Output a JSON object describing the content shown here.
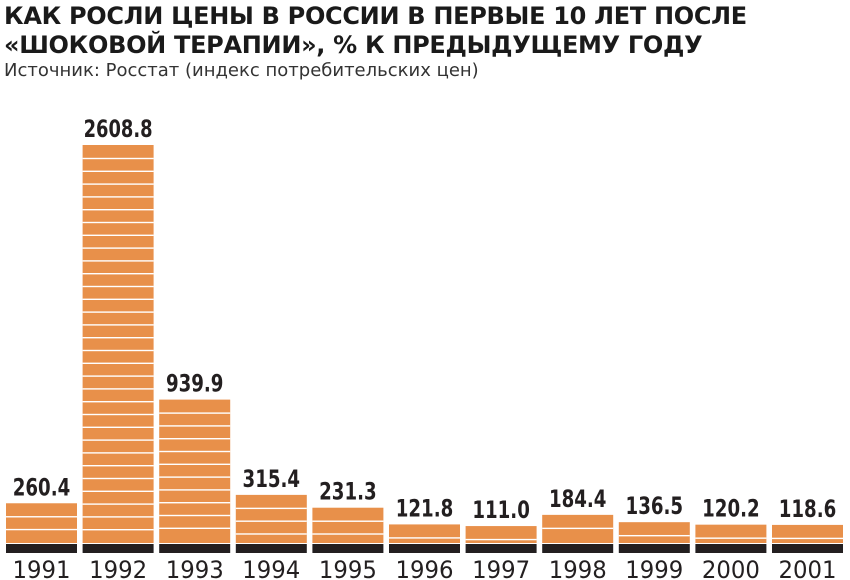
{
  "title": {
    "line1": "КАК РОСЛИ ЦЕНЫ В РОССИИ В ПЕРВЫЕ 10 ЛЕТ ПОСЛЕ",
    "line2": "«ШОКОВОЙ ТЕРАПИИ», % К ПРЕДЫДУЩЕМУ ГОДУ"
  },
  "source": "Источник: Росстат (индекс потребительских цен)",
  "colors": {
    "bar": "#e8904a",
    "stripe": "#ffffff",
    "base": "#231f20",
    "text": "#231f20"
  },
  "chart_data": {
    "type": "bar",
    "title": "КАК РОСЛИ ЦЕНЫ В РОССИИ В ПЕРВЫЕ 10 ЛЕТ ПОСЛЕ «ШОКОВОЙ ТЕРАПИИ», % К ПРЕДЫДУЩЕМУ ГОДУ",
    "categories": [
      "1991",
      "1992",
      "1993",
      "1994",
      "1995",
      "1996",
      "1997",
      "1998",
      "1999",
      "2000",
      "2001"
    ],
    "values": [
      260.4,
      2608.8,
      939.9,
      315.4,
      231.3,
      121.8,
      111.0,
      184.4,
      136.5,
      120.2,
      118.6
    ],
    "value_labels": [
      "260.4",
      "2608.8",
      "939.9",
      "315.4",
      "231.3",
      "121.8",
      "111.0",
      "184.4",
      "136.5",
      "120.2",
      "118.6"
    ],
    "xlabel": "",
    "ylabel": "",
    "grid": false
  }
}
